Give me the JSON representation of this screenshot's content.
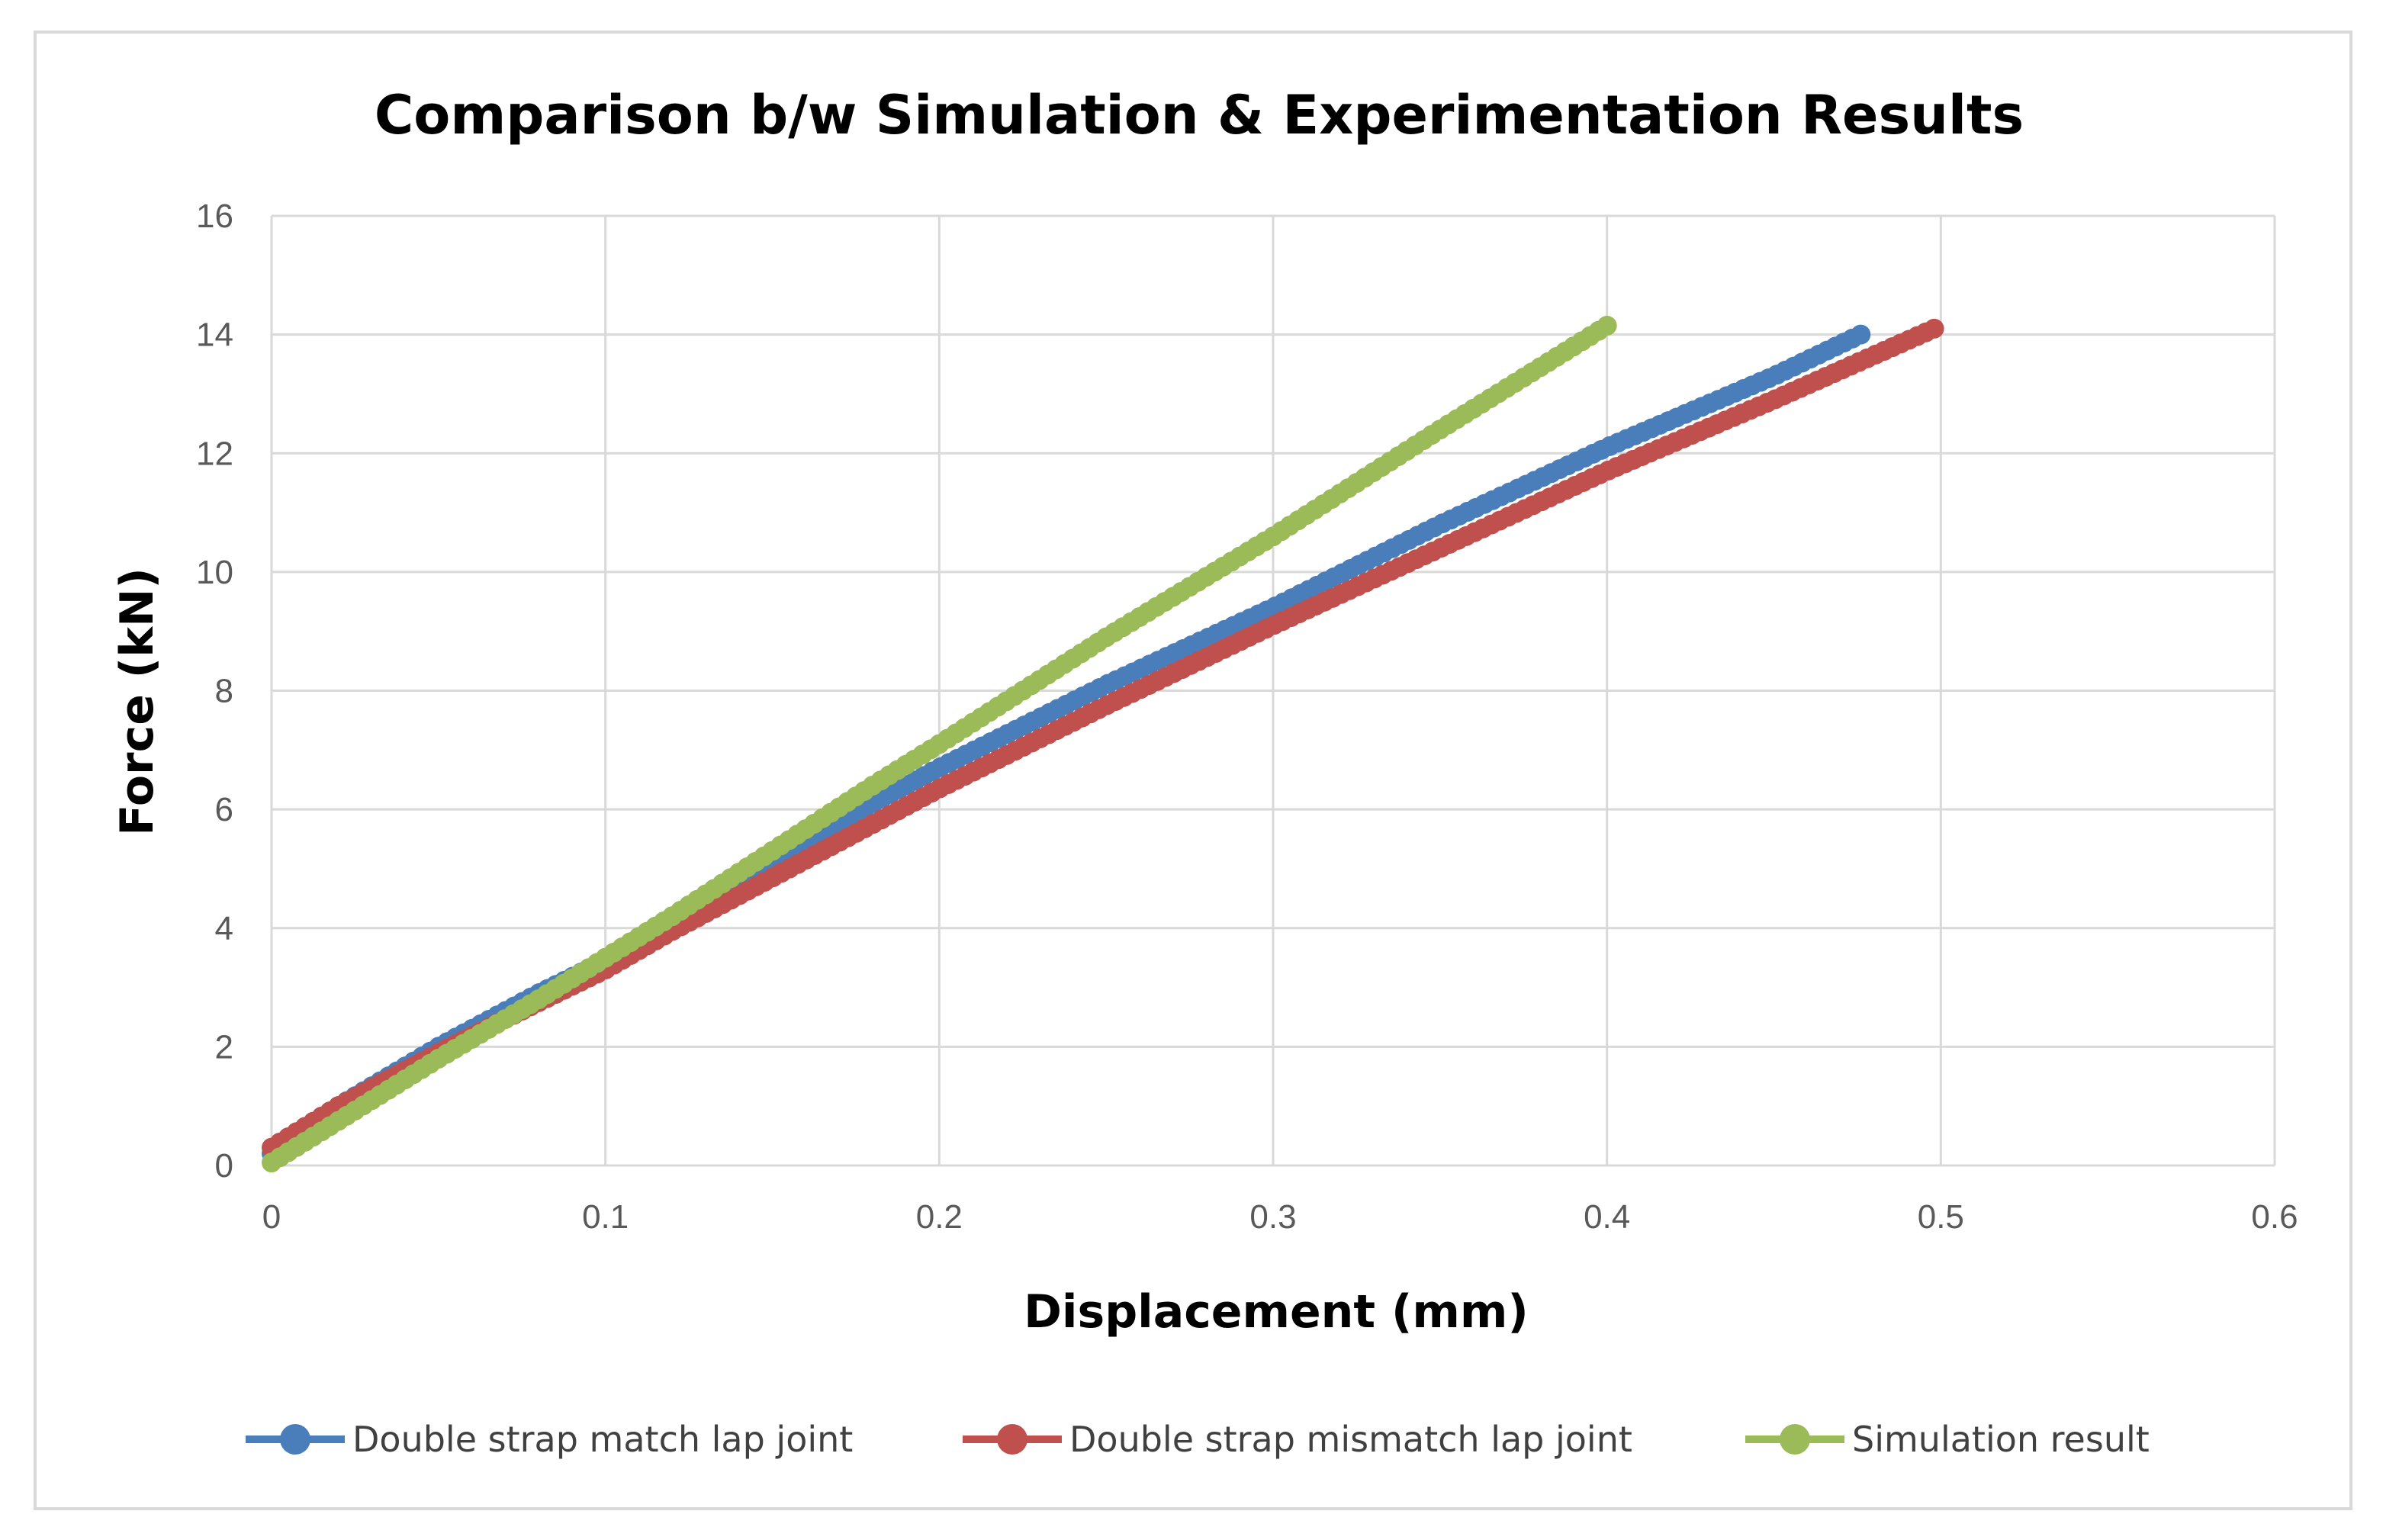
{
  "chart_data": {
    "type": "scatter",
    "title": "Comparison b/w Simulation & Experimentation Results",
    "xlabel": "Displacement (mm)",
    "ylabel": "Force (kN)",
    "xlim": [
      0,
      0.6
    ],
    "ylim": [
      0,
      16
    ],
    "xticks": [
      0,
      0.1,
      0.2,
      0.3,
      0.4,
      0.5,
      0.6
    ],
    "xtick_labels": [
      "0",
      "0.1",
      "0.2",
      "0.3",
      "0.4",
      "0.5",
      "0.6"
    ],
    "yticks": [
      0,
      2,
      4,
      6,
      8,
      10,
      12,
      14,
      16
    ],
    "ytick_labels": [
      "0",
      "2",
      "4",
      "6",
      "8",
      "10",
      "12",
      "14",
      "16"
    ],
    "grid": true,
    "legend_position": "bottom",
    "series": [
      {
        "name": "Double strap match lap joint",
        "color": "#4a7ebb",
        "x": [
          0,
          0.02,
          0.05,
          0.08,
          0.1,
          0.12,
          0.15,
          0.18,
          0.2,
          0.25,
          0.3,
          0.35,
          0.4,
          0.45,
          0.476
        ],
        "y": [
          0.2,
          1.0,
          2.0,
          2.9,
          3.45,
          4.1,
          5.1,
          6.1,
          6.7,
          8.1,
          9.4,
          10.8,
          12.1,
          13.3,
          14.0
        ]
      },
      {
        "name": "Double strap mismatch lap joint",
        "color": "#c0504d",
        "x": [
          0,
          0.02,
          0.05,
          0.08,
          0.1,
          0.12,
          0.15,
          0.18,
          0.2,
          0.25,
          0.3,
          0.35,
          0.4,
          0.45,
          0.498
        ],
        "y": [
          0.3,
          1.0,
          1.9,
          2.75,
          3.3,
          3.95,
          4.85,
          5.75,
          6.35,
          7.75,
          9.1,
          10.4,
          11.7,
          12.9,
          14.1
        ]
      },
      {
        "name": "Simulation result",
        "color": "#9bbb59",
        "x": [
          0,
          0.02,
          0.05,
          0.08,
          0.1,
          0.12,
          0.15,
          0.18,
          0.2,
          0.25,
          0.3,
          0.35,
          0.4
        ],
        "y": [
          0.05,
          0.75,
          1.8,
          2.8,
          3.5,
          4.2,
          5.3,
          6.4,
          7.1,
          8.9,
          10.6,
          12.4,
          14.15
        ]
      }
    ]
  }
}
